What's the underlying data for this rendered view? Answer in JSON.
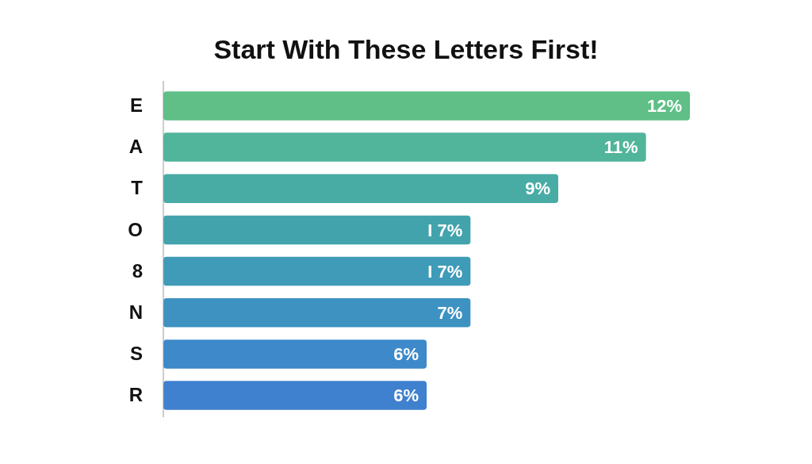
{
  "chart_data": {
    "type": "bar",
    "orientation": "horizontal",
    "title": "Start With These Letters First!",
    "categories": [
      "E",
      "A",
      "T",
      "O",
      "8",
      "N",
      "S",
      "R"
    ],
    "values": [
      12,
      11,
      9,
      7,
      7,
      7,
      6,
      6
    ],
    "value_labels": [
      "12%",
      "11%",
      "9%",
      "I 7%",
      "I 7%",
      "7%",
      "6%",
      "6%"
    ],
    "colors": [
      "#5fbf86",
      "#50b59a",
      "#48aca5",
      "#42a3ad",
      "#3f9bb8",
      "#3d92c2",
      "#3d89c9",
      "#3f80cf"
    ]
  }
}
